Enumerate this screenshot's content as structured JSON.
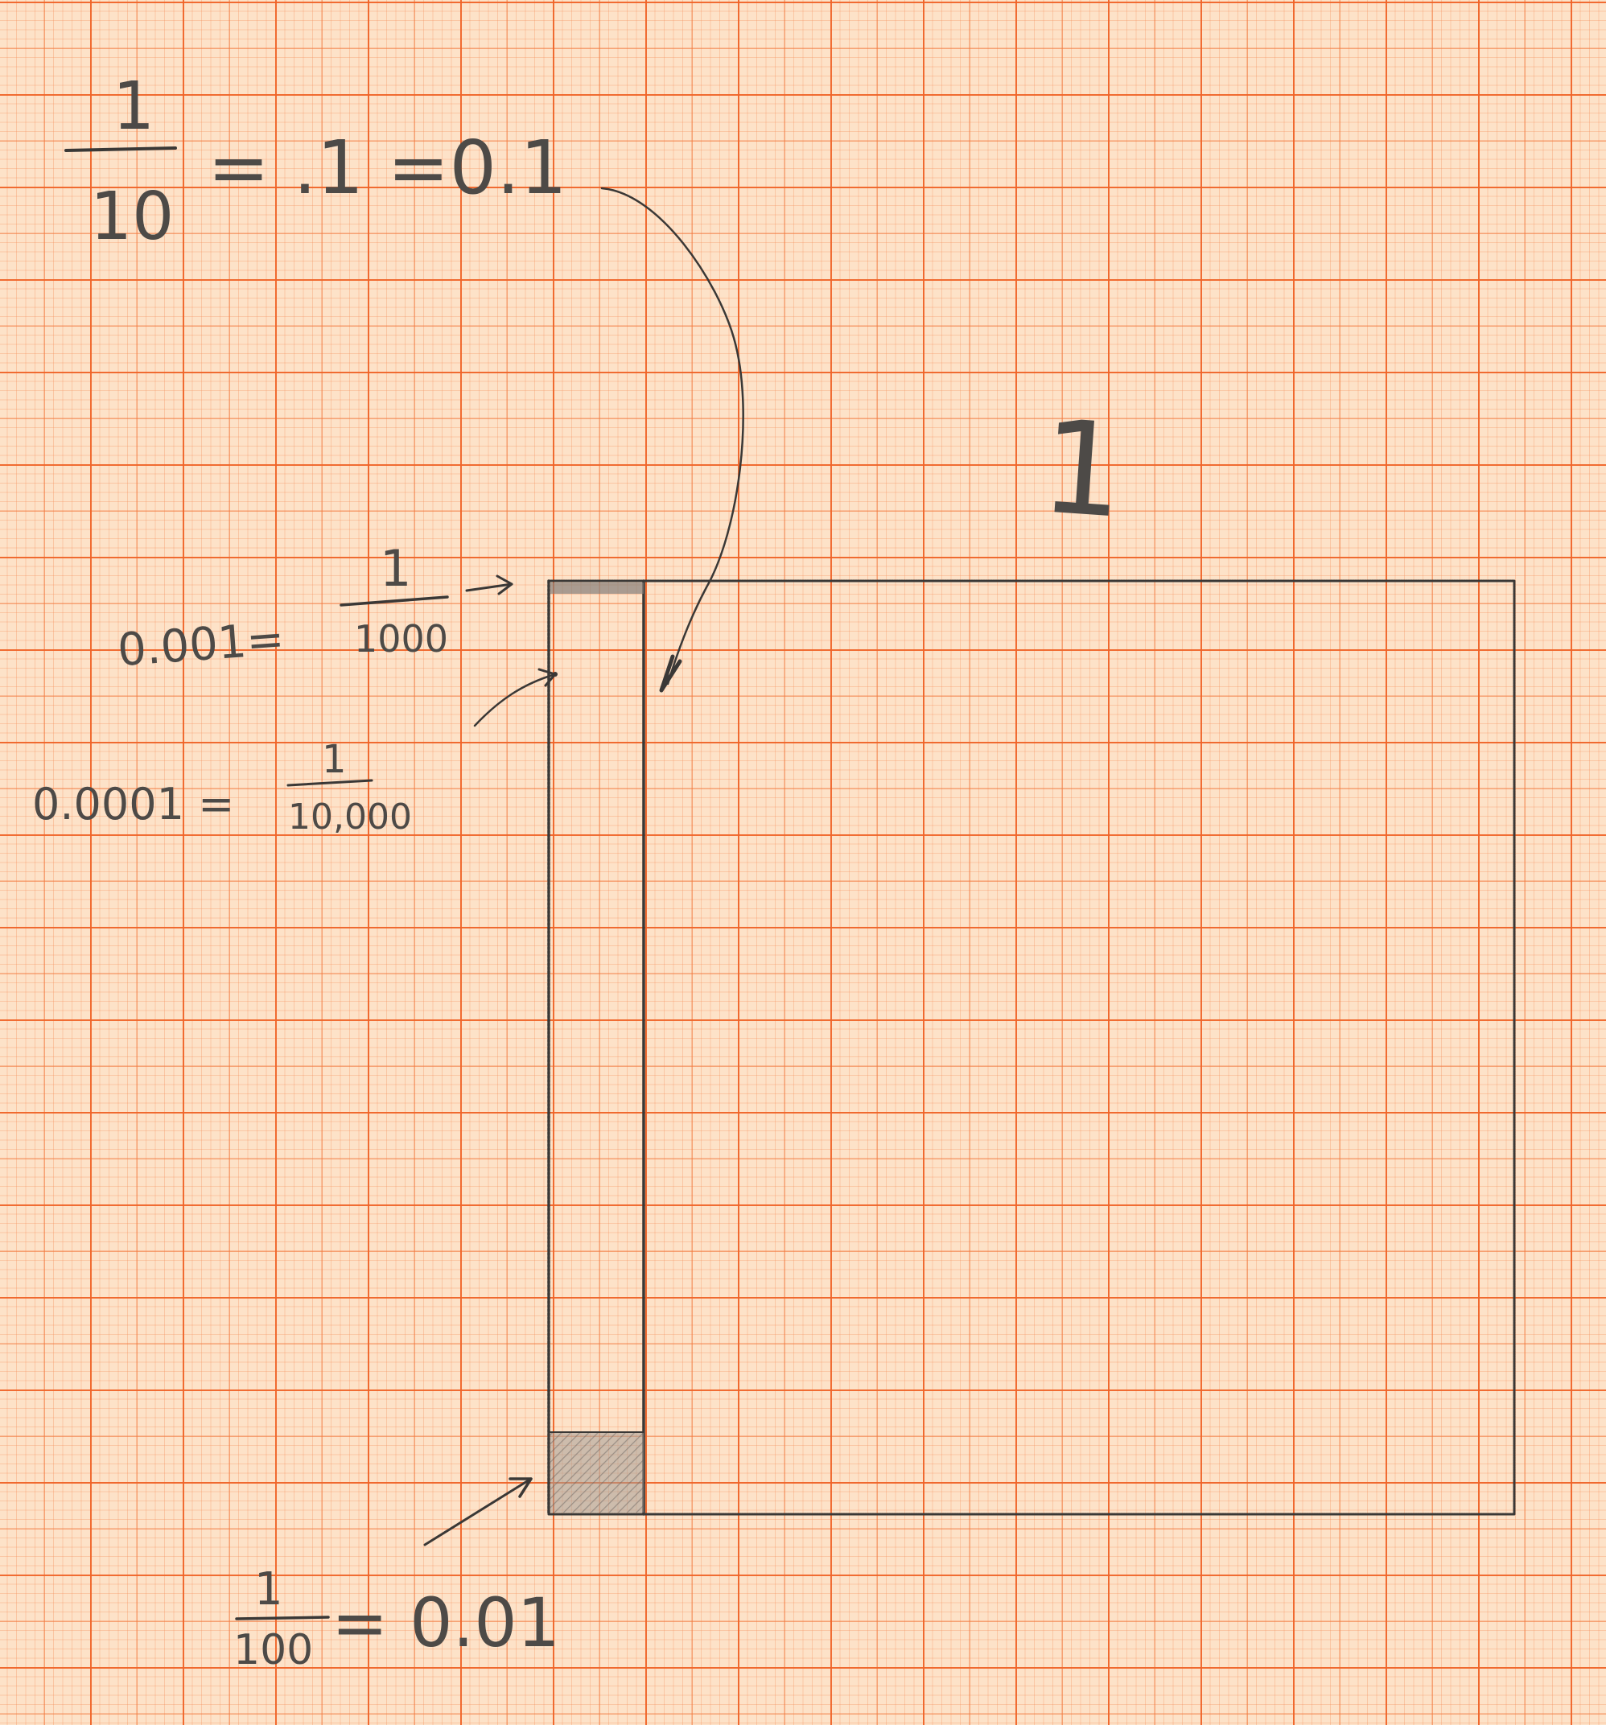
{
  "notes": {
    "tenth": {
      "numerator": "1",
      "denominator": "10",
      "equals": "= .1 =0.1"
    },
    "thousandth": {
      "decimal": "0.001=",
      "numerator": "1",
      "denominator": "1000"
    },
    "ten_thousandth": {
      "decimal": "0.0001 =",
      "numerator": "1",
      "denominator": "10,000"
    },
    "hundredth": {
      "numerator": "1",
      "denominator": "100",
      "equals": "= 0.01"
    },
    "whole_label": "1"
  },
  "colors": {
    "paper": "#fde2c8",
    "grid_line": "#f06428",
    "pencil": "#3a3836",
    "shade": "#9a8e88"
  }
}
